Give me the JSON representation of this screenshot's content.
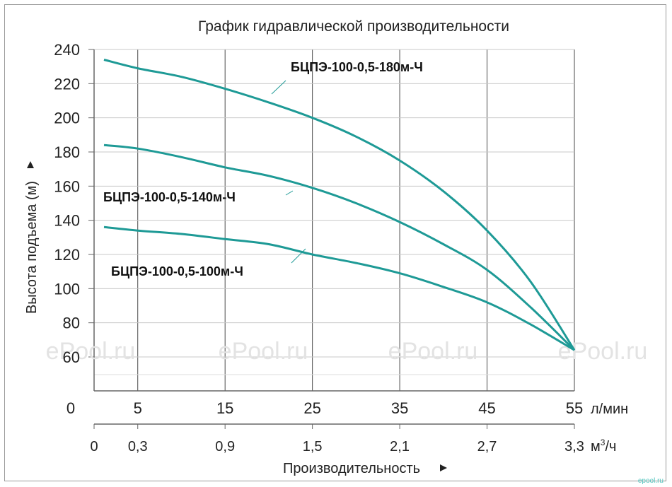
{
  "chart_data": {
    "type": "line",
    "title": "График гидравлической производительности",
    "ylabel": "Высота подъема (м)",
    "xlabel": "Производительность",
    "ylim": [
      60,
      240
    ],
    "xlim": [
      0,
      55
    ],
    "y_ticks": [
      "240",
      "220",
      "200",
      "180",
      "160",
      "140",
      "120",
      "100",
      "80",
      "60"
    ],
    "x_ticks_lmin": [
      "0",
      "5",
      "15",
      "25",
      "35",
      "45",
      "55"
    ],
    "x_unit_lmin": "л/мин",
    "x_ticks_m3h": [
      "0",
      "0,3",
      "0,9",
      "1,5",
      "2,1",
      "2,7",
      "3,3"
    ],
    "x_unit_m3h_base": "м",
    "x_unit_m3h_sup": "3",
    "x_unit_m3h_tail": "/ч",
    "grid": true,
    "line_color": "#1e9a96",
    "series": [
      {
        "name": "БЦПЭ-100-0,5-180м-Ч",
        "x": [
          0,
          5,
          10,
          15,
          20,
          25,
          30,
          35,
          40,
          45,
          50,
          55
        ],
        "y": [
          234,
          229,
          224,
          217,
          209,
          200,
          189,
          175,
          157,
          134,
          104,
          64
        ]
      },
      {
        "name": "БЦПЭ-100-0,5-140м-Ч",
        "x": [
          0,
          5,
          10,
          15,
          20,
          25,
          30,
          35,
          40,
          45,
          50,
          55
        ],
        "y": [
          184,
          182,
          177,
          171,
          166,
          159,
          150,
          139,
          126,
          111,
          89,
          64
        ]
      },
      {
        "name": "БЦПЭ-100-0,5-100м-Ч",
        "x": [
          0,
          5,
          10,
          15,
          20,
          25,
          30,
          35,
          40,
          45,
          50,
          55
        ],
        "y": [
          136,
          134,
          132,
          129,
          126,
          120,
          115,
          109,
          101,
          92,
          79,
          64
        ]
      }
    ]
  },
  "watermark": "ePool.ru",
  "site_mark": "epool.ru"
}
